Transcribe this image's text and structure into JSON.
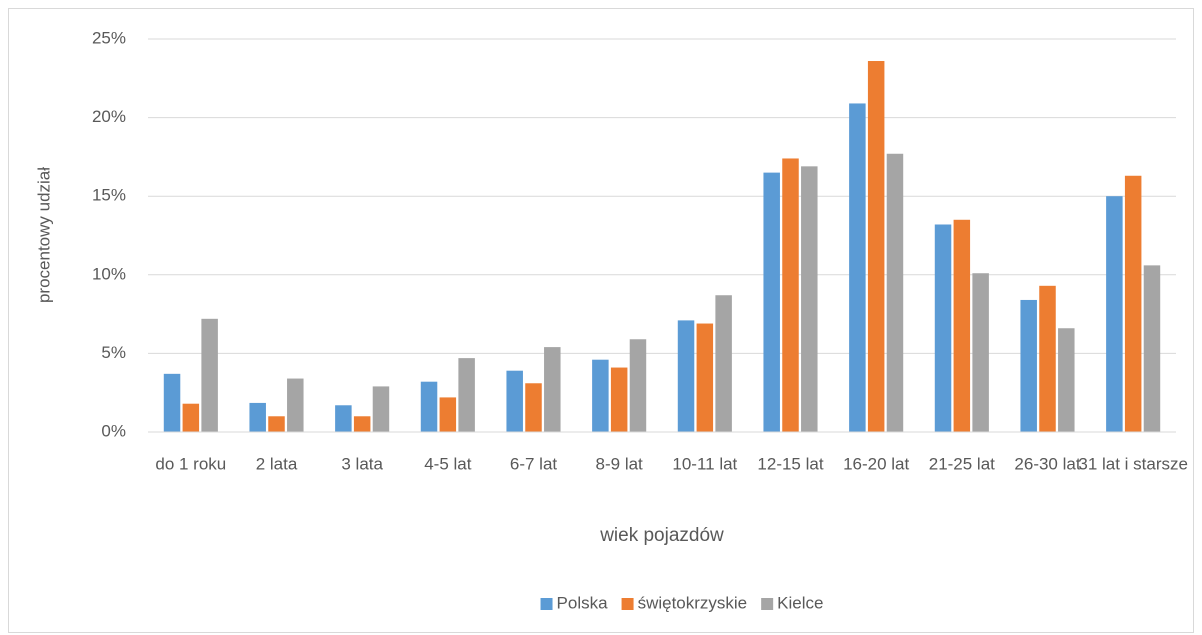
{
  "chart_data": {
    "type": "bar",
    "y_label": "procentowy udział",
    "x_label": "wiek pojazdów",
    "categories": [
      "do 1 roku",
      "2 lata",
      "3 lata",
      "4-5 lat",
      "6-7 lat",
      "8-9 lat",
      "10-11 lat",
      "12-15 lat",
      "16-20 lat",
      "21-25 lat",
      "26-30 lat",
      "31 lat i starsze"
    ],
    "series": [
      {
        "name": "Polska",
        "color": "#5b9bd5",
        "values": [
          3.7,
          1.85,
          1.7,
          3.2,
          3.9,
          4.6,
          7.1,
          16.5,
          20.9,
          13.2,
          8.4,
          15.0
        ]
      },
      {
        "name": "świętokrzyskie",
        "color": "#ed7d31",
        "values": [
          1.8,
          1.0,
          1.0,
          2.2,
          3.1,
          4.1,
          6.9,
          17.4,
          23.6,
          13.5,
          9.3,
          16.3
        ]
      },
      {
        "name": "Kielce",
        "color": "#a5a5a5",
        "values": [
          7.2,
          3.4,
          2.9,
          4.7,
          5.4,
          5.9,
          8.7,
          16.9,
          17.7,
          10.1,
          6.6,
          10.6
        ]
      }
    ],
    "ylim": [
      0,
      25
    ],
    "yticks": [
      {
        "value": 0,
        "label": "0%"
      },
      {
        "value": 5,
        "label": "5%"
      },
      {
        "value": 10,
        "label": "10%"
      },
      {
        "value": 15,
        "label": "15%"
      },
      {
        "value": 20,
        "label": "20%"
      },
      {
        "value": 25,
        "label": "25%"
      }
    ],
    "grid": true,
    "legend": "bottom"
  }
}
